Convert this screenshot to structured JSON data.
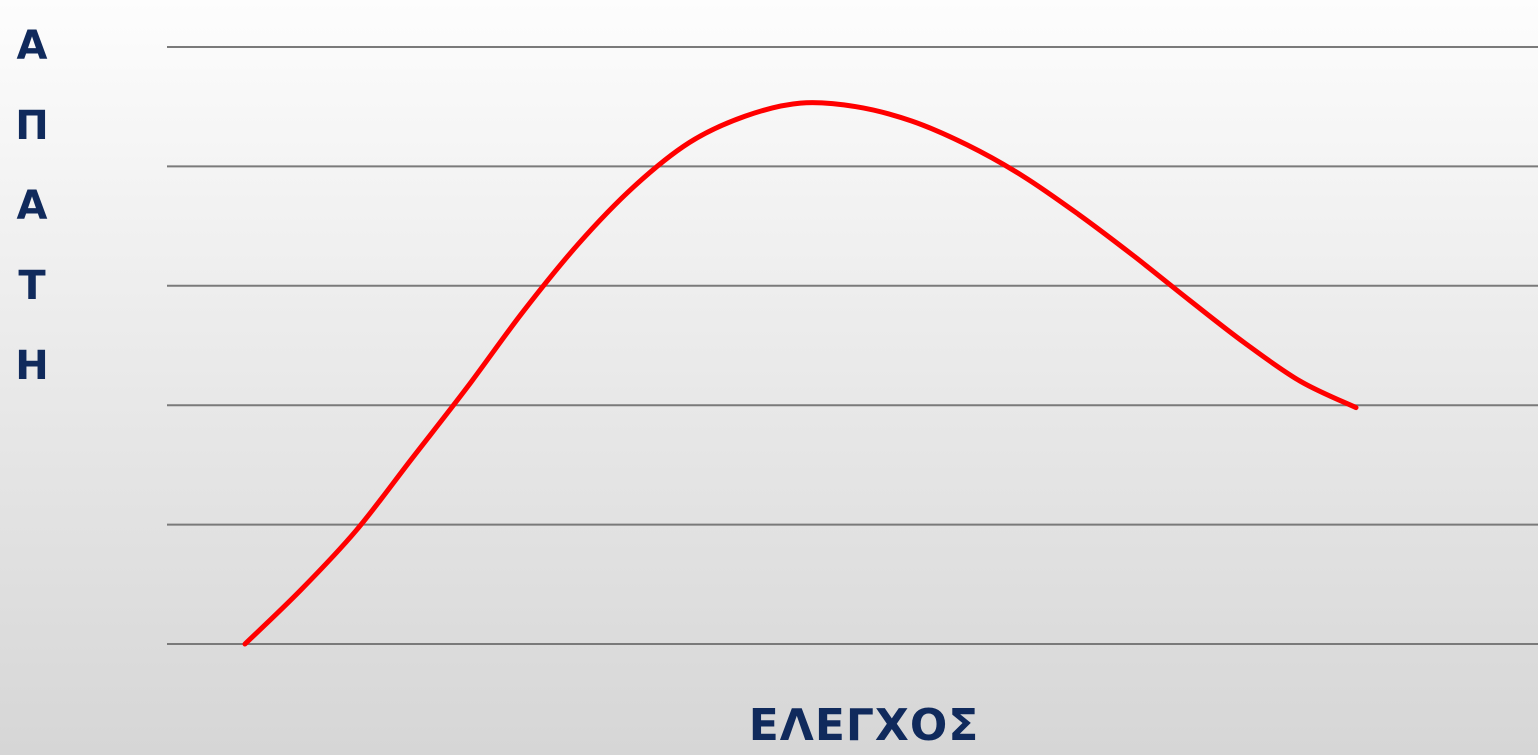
{
  "chart_data": {
    "type": "line",
    "title": "",
    "xlabel": "ΕΛΕΓΧΟΣ",
    "ylabel": "ΑΠΑΤΗ",
    "ylim": [
      0,
      5
    ],
    "xlim": [
      0,
      10
    ],
    "grid": true,
    "series": [
      {
        "color": "#ff0000",
        "x": [
          0.0,
          0.5,
          1.0,
          1.5,
          2.0,
          2.5,
          3.0,
          3.5,
          4.0,
          4.5,
          5.0,
          5.5,
          6.0,
          6.5,
          7.0,
          7.5,
          8.0,
          8.5,
          9.0,
          9.5,
          10.0
        ],
        "y": [
          0.0,
          0.45,
          0.95,
          1.55,
          2.15,
          2.78,
          3.35,
          3.83,
          4.2,
          4.42,
          4.53,
          4.5,
          4.38,
          4.18,
          3.92,
          3.6,
          3.25,
          2.88,
          2.52,
          2.2,
          1.98
        ]
      }
    ]
  }
}
